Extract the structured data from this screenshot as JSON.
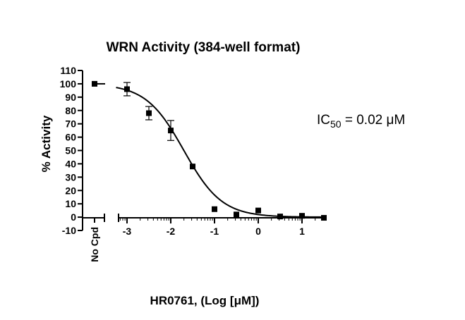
{
  "chart_data": {
    "type": "scatter",
    "title": "WRN Activity (384-well format)",
    "xlabel": "HR0761, (Log [μM])",
    "ylabel": "% Activity",
    "xlim": [
      -3.2,
      1.6
    ],
    "ylim": [
      -10,
      110
    ],
    "x_ticks": [
      "-3",
      "-2",
      "-1",
      "0",
      "1"
    ],
    "y_ticks": [
      "110",
      "100",
      "90",
      "80",
      "70",
      "60",
      "50",
      "40",
      "30",
      "20",
      "10",
      "0",
      "-10"
    ],
    "control": {
      "label": "No Cpd",
      "value": 100,
      "error": 0
    },
    "series": [
      {
        "x": [
          -3.0,
          -2.5,
          -2.0,
          -1.5,
          -1.0,
          -0.5,
          0.0,
          0.5,
          1.0,
          1.5
        ],
        "y": [
          96,
          78,
          65,
          38,
          6,
          2,
          5,
          0.5,
          1,
          -0.5
        ],
        "error": [
          5,
          5,
          7.5,
          0,
          0,
          0,
          0,
          0,
          0,
          0
        ]
      }
    ],
    "fit": {
      "type": "sigmoidal",
      "top": 100,
      "bottom": 0,
      "log_ic50": -1.7,
      "hill_slope": 1
    },
    "annotation": {
      "prefix": "IC",
      "subscript": "50",
      "text": " = 0.02 μM"
    },
    "grid": false,
    "legend": "none"
  }
}
